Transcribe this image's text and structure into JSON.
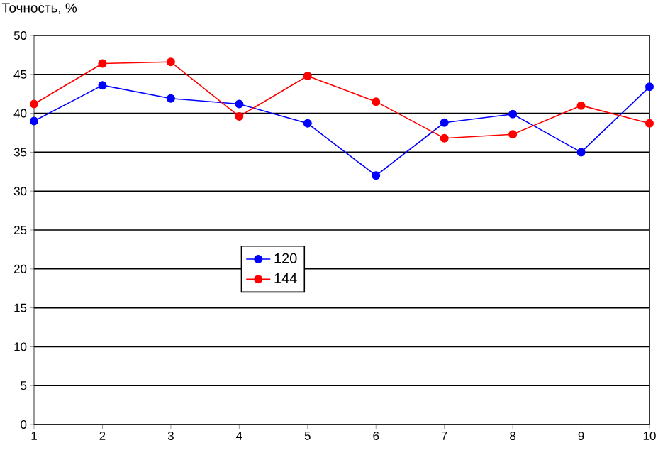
{
  "chart_data": {
    "type": "line",
    "ylabel": "Точность, %",
    "x": [
      1,
      2,
      3,
      4,
      5,
      6,
      7,
      8,
      9,
      10
    ],
    "series": [
      {
        "name": "120",
        "color": "#0000ff",
        "values": [
          39,
          43.6,
          41.9,
          41.2,
          38.7,
          32,
          38.8,
          39.9,
          35,
          43.4
        ]
      },
      {
        "name": "144",
        "color": "#ff0000",
        "values": [
          41.2,
          46.4,
          46.6,
          39.6,
          44.8,
          41.5,
          36.8,
          37.3,
          41,
          38.7
        ]
      }
    ],
    "xlim": [
      1,
      10
    ],
    "xticks": [
      1,
      2,
      3,
      4,
      5,
      6,
      7,
      8,
      9,
      10
    ],
    "ylim": [
      0,
      50
    ],
    "yticks": [
      0,
      5,
      10,
      15,
      20,
      25,
      30,
      35,
      40,
      45,
      50
    ],
    "grid": "y",
    "legend": "center left",
    "marker": "circle",
    "line_style": "solid"
  }
}
